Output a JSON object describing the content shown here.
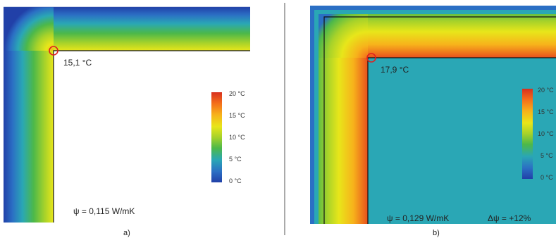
{
  "panels": [
    {
      "id": "a",
      "caption": "a)",
      "corner_temp": "15,1 °C",
      "psi": "ψ = 0,115 W/mK",
      "delta_psi": ""
    },
    {
      "id": "b",
      "caption": "b)",
      "corner_temp": "17,9 °C",
      "psi": "ψ = 0,129 W/mK",
      "delta_psi": "Δψ = +12%"
    }
  ],
  "colorbar": {
    "ticks": [
      "20 °C",
      "15 °C",
      "10 °C",
      "5 °C",
      "0 °C"
    ],
    "colors": [
      "#d7301f",
      "#f46d1b",
      "#f7b21b",
      "#e8e61a",
      "#a6d22a",
      "#4cb84a",
      "#2aa7b5",
      "#2b6fc4",
      "#2140a8"
    ]
  },
  "colors": {
    "outline": "#111111",
    "marker": "#e02020",
    "divider": "#555555"
  }
}
